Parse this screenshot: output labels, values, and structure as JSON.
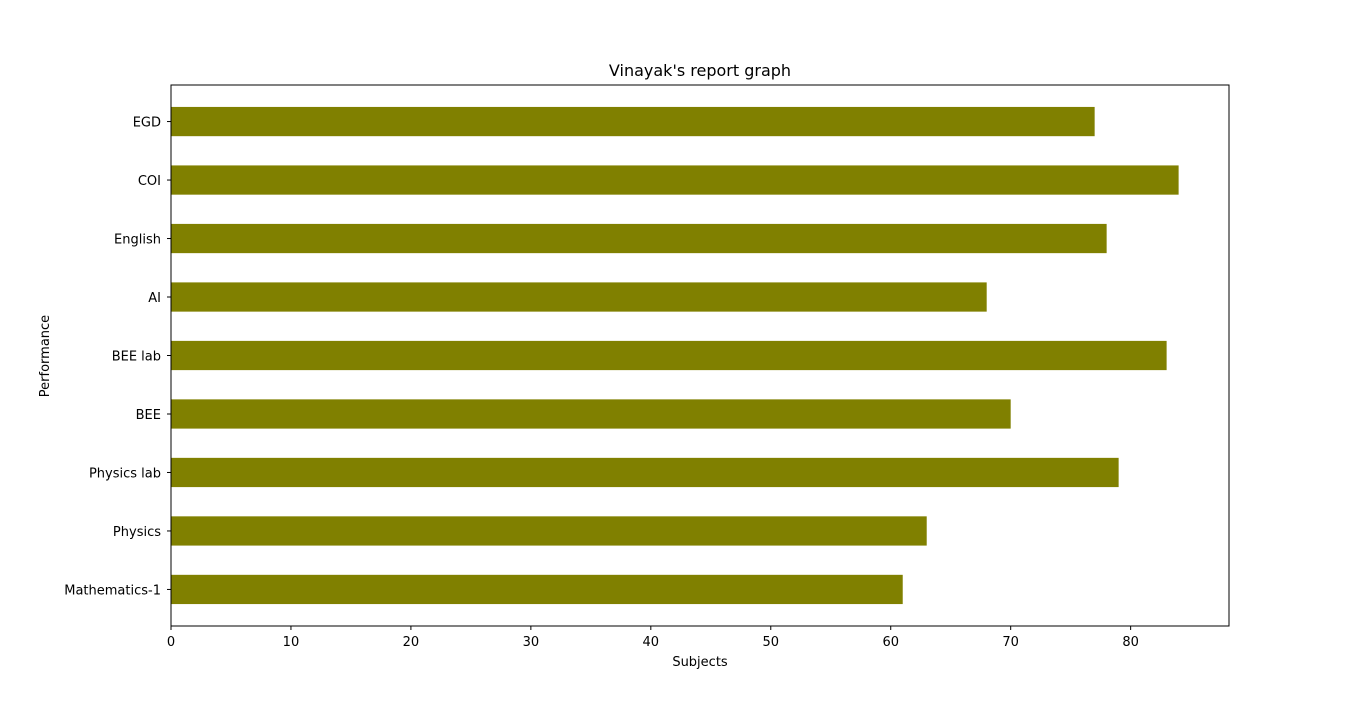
{
  "chart_data": {
    "type": "bar",
    "orientation": "horizontal",
    "title": "Vinayak's report graph",
    "xlabel": "Subjects",
    "ylabel": "Performance",
    "categories": [
      "Mathematics-1",
      "Physics",
      "Physics lab",
      "BEE",
      "BEE lab",
      "AI",
      "English",
      "COI",
      "EGD"
    ],
    "values": [
      61,
      63,
      79,
      70,
      83,
      68,
      78,
      84,
      77
    ],
    "xlim": [
      0,
      88.2
    ],
    "xticks": [
      0,
      10,
      20,
      30,
      40,
      50,
      60,
      70,
      80
    ],
    "grid": false,
    "legend": "none",
    "colors": {
      "bar": "#808000",
      "axis": "#000000",
      "background": "#ffffff"
    }
  }
}
